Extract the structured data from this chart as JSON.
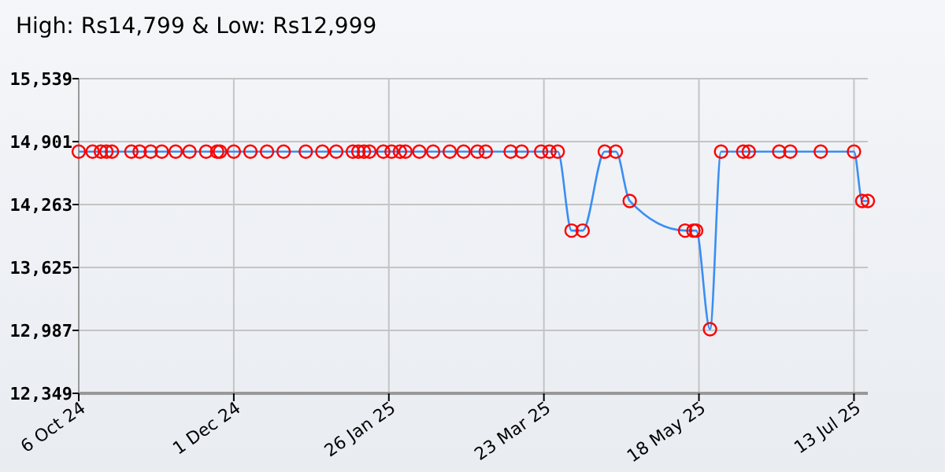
{
  "chart_data": {
    "type": "line",
    "title": "High: Rs14,799 & Low: Rs12,999",
    "x": [
      "2024-10-06",
      "2024-10-11",
      "2024-10-14",
      "2024-10-16",
      "2024-10-18",
      "2024-10-25",
      "2024-10-28",
      "2024-11-01",
      "2024-11-05",
      "2024-11-10",
      "2024-11-15",
      "2024-11-21",
      "2024-11-25",
      "2024-11-26",
      "2024-12-01",
      "2024-12-07",
      "2024-12-13",
      "2024-12-19",
      "2024-12-27",
      "2025-01-02",
      "2025-01-07",
      "2025-01-13",
      "2025-01-15",
      "2025-01-17",
      "2025-01-19",
      "2025-01-24",
      "2025-01-27",
      "2025-01-30",
      "2025-02-01",
      "2025-02-06",
      "2025-02-11",
      "2025-02-17",
      "2025-02-22",
      "2025-02-27",
      "2025-03-02",
      "2025-03-11",
      "2025-03-15",
      "2025-03-22",
      "2025-03-25",
      "2025-03-28",
      "2025-04-02",
      "2025-04-06",
      "2025-04-14",
      "2025-04-18",
      "2025-04-23",
      "2025-05-13",
      "2025-05-16",
      "2025-05-17",
      "2025-05-22",
      "2025-05-26",
      "2025-06-03",
      "2025-06-05",
      "2025-06-16",
      "2025-06-20",
      "2025-07-01",
      "2025-07-13",
      "2025-07-16",
      "2025-07-18"
    ],
    "series": [
      {
        "color": "#3a8ef2",
        "values": [
          14799,
          14799,
          14799,
          14799,
          14799,
          14799,
          14799,
          14799,
          14799,
          14799,
          14799,
          14799,
          14799,
          14799,
          14799,
          14799,
          14799,
          14799,
          14799,
          14799,
          14799,
          14799,
          14799,
          14799,
          14799,
          14799,
          14799,
          14799,
          14799,
          14799,
          14799,
          14799,
          14799,
          14799,
          14799,
          14799,
          14799,
          14799,
          14799,
          14799,
          13999,
          13999,
          14799,
          14799,
          14299,
          13999,
          13999,
          13999,
          12999,
          14799,
          14799,
          14799,
          14799,
          14799,
          14799,
          14799,
          14299,
          14299
        ]
      }
    ],
    "xlim": [
      "2024-10-06",
      "2025-07-18"
    ],
    "xticks": [
      {
        "value": "2024-10-06",
        "label": "6 Oct 24"
      },
      {
        "value": "2024-12-01",
        "label": "1 Dec 24"
      },
      {
        "value": "2025-01-26",
        "label": "26 Jan 25"
      },
      {
        "value": "2025-03-23",
        "label": "23 Mar 25"
      },
      {
        "value": "2025-05-18",
        "label": "18 May 25"
      },
      {
        "value": "2025-07-13",
        "label": "13 Jul 25"
      }
    ],
    "ylim": [
      12349,
      15539
    ],
    "yticks": [
      {
        "value": 12349,
        "label": "12,349"
      },
      {
        "value": 12987,
        "label": "12,987"
      },
      {
        "value": 13625,
        "label": "13,625"
      },
      {
        "value": 14263,
        "label": "14,263"
      },
      {
        "value": 14901,
        "label": "14,901"
      },
      {
        "value": 15539,
        "label": "15,539"
      }
    ],
    "grid": true,
    "marker": "circle",
    "line_style": "solid"
  }
}
